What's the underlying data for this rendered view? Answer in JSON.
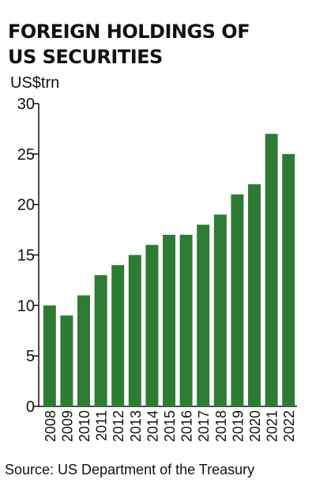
{
  "title_lines": [
    "FOREIGN HOLDINGS OF",
    "US SECURITIES"
  ],
  "unit": "US$trn",
  "source": "Source: US Department of the Treasury",
  "colors": {
    "bar": "#2e7b34",
    "axis": "#111111"
  },
  "chart_data": {
    "type": "bar",
    "title": "FOREIGN HOLDINGS OF US SECURITIES",
    "ylabel": "US$trn",
    "xlabel": "",
    "categories": [
      "2008",
      "2009",
      "2010",
      "2011",
      "2012",
      "2013",
      "2014",
      "2015",
      "2016",
      "2017",
      "2018",
      "2019",
      "2020",
      "2021",
      "2022"
    ],
    "values": [
      10,
      9,
      11,
      13,
      14,
      15,
      16,
      17,
      17,
      18,
      19,
      21,
      22,
      27,
      25
    ],
    "ylim": [
      0,
      30
    ],
    "yticks": [
      0,
      5,
      10,
      15,
      20,
      25,
      30
    ],
    "grid": false,
    "legend": "none"
  }
}
